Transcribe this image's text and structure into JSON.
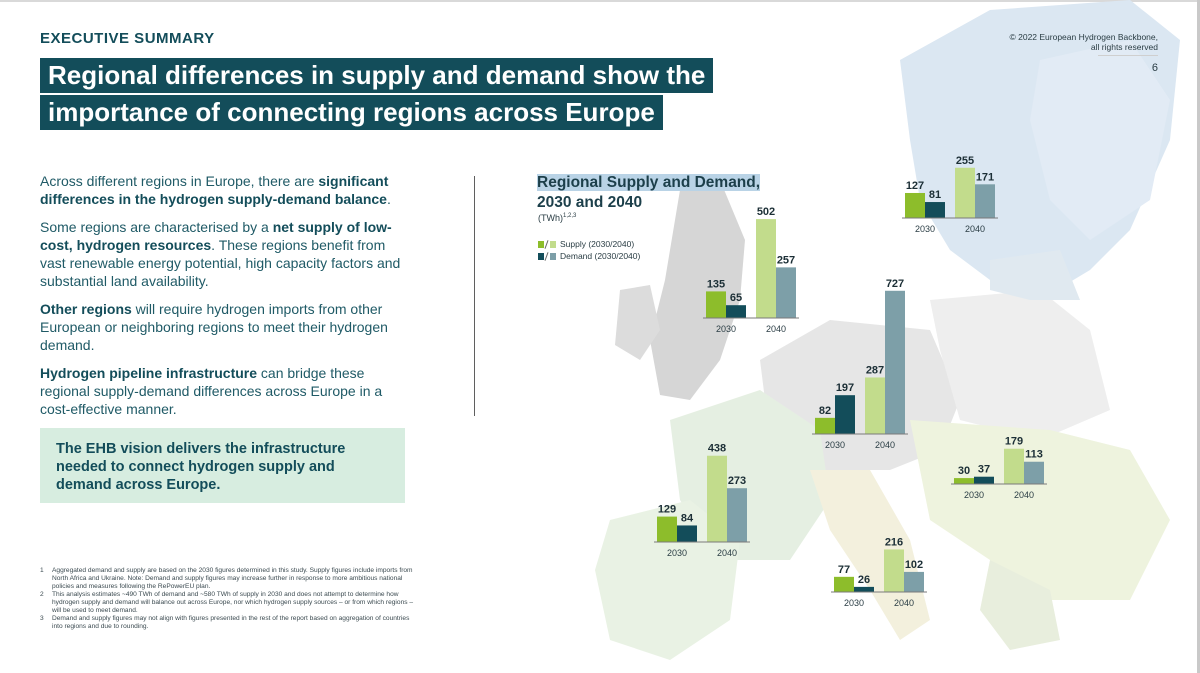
{
  "header": {
    "section_label": "EXECUTIVE SUMMARY",
    "title_lines": [
      "Regional differences in supply and demand show the",
      "importance of connecting regions across Europe"
    ],
    "copyright_lines": [
      "© 2022 European Hydrogen Backbone,",
      "all rights reserved"
    ],
    "page_number": "6"
  },
  "body": {
    "p1": {
      "a": "Across different regions in Europe, there are ",
      "b": "significant differences in the hydrogen supply-demand balance",
      "c": "."
    },
    "p2": {
      "a": "Some regions are characterised by a ",
      "b": "net supply of low-cost, hydrogen resources",
      "c": ". These regions benefit from vast renewable energy potential, high capacity factors and substantial land availability."
    },
    "p3": {
      "b": "Other regions",
      "c": " will require hydrogen imports from other European or neighboring regions to meet their hydrogen demand."
    },
    "p4": {
      "b": "Hydrogen pipeline infrastructure",
      "c": " can bridge these regional supply-demand differences across Europe in a cost-effective manner."
    },
    "callout": "The EHB vision delivers the infrastructure needed to connect hydrogen supply and demand across Europe."
  },
  "footnotes": [
    {
      "n": "1",
      "text": "Aggregated demand and supply are based on the 2030 figures determined in this study. Supply figures include imports from North Africa and Ukraine. Note: Demand and supply figures may increase further in response to more ambitious national policies and measures following the RePowerEU plan."
    },
    {
      "n": "2",
      "text": "This analysis estimates ~490 TWh of demand and ~580 TWh of supply in 2030 and does not attempt to determine how hydrogen supply and demand will balance out across Europe, nor which hydrogen supply sources – or from which regions – will be used to meet demand."
    },
    {
      "n": "3",
      "text": "Demand and supply figures may not align with figures presented in the rest of the report based on aggregation of countries into regions and due to rounding."
    }
  ],
  "chart_data": {
    "type": "bar",
    "title_line1": "Regional Supply and Demand,",
    "title_line2": "2030 and 2040",
    "unit": "(TWh)",
    "unit_sup": "1,2,3",
    "legend": [
      {
        "label": "Supply (2030/2040)",
        "colors": [
          "#8dbd2b",
          "#c2dc8c"
        ]
      },
      {
        "label": "Demand (2030/2040)",
        "colors": [
          "#134d5a",
          "#7d9fa8"
        ]
      }
    ],
    "colors": {
      "supply_2030": "#8dbd2b",
      "supply_2040": "#c2dc8c",
      "demand_2030": "#134d5a",
      "demand_2040": "#7d9fa8"
    },
    "categories": [
      "2030",
      "2040"
    ],
    "regions": [
      {
        "id": "nordics",
        "supply": [
          127,
          255
        ],
        "demand": [
          81,
          171
        ]
      },
      {
        "id": "uk-ireland",
        "supply": [
          135,
          502
        ],
        "demand": [
          65,
          257
        ]
      },
      {
        "id": "central",
        "supply": [
          82,
          287
        ],
        "demand": [
          197,
          727
        ]
      },
      {
        "id": "south-east",
        "supply": [
          30,
          179
        ],
        "demand": [
          37,
          113
        ]
      },
      {
        "id": "iberia",
        "supply": [
          129,
          438
        ],
        "demand": [
          84,
          273
        ]
      },
      {
        "id": "italy",
        "supply": [
          77,
          216
        ],
        "demand": [
          26,
          102
        ]
      }
    ]
  }
}
